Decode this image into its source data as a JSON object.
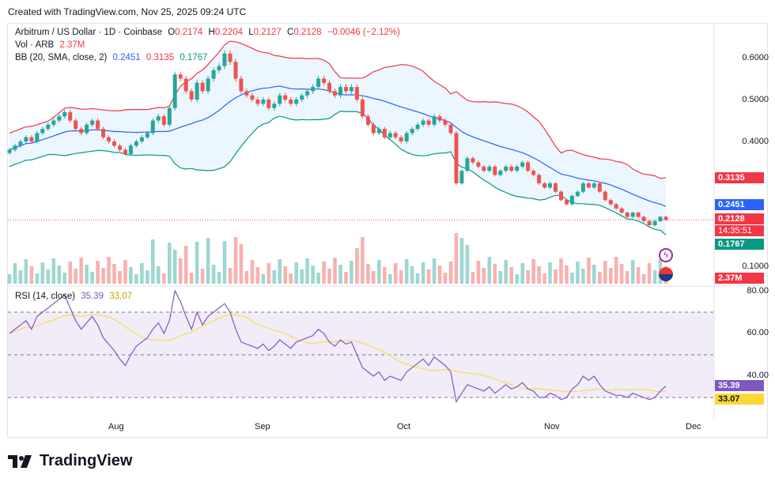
{
  "header": {
    "text": "Created with TradingView.com, Nov 25, 2025 09:24 UTC"
  },
  "legend": {
    "symbol": "Arbitrum / US Dollar · 1D · Coinbase",
    "o_label": "O",
    "o": "0.2174",
    "h_label": "H",
    "h": "0.2204",
    "l_label": "L",
    "l": "0.2127",
    "c_label": "C",
    "c": "0.2128",
    "change": "−0.0046 (−2.12%)",
    "vol_label": "Vol · ARB",
    "vol": "2.37M",
    "bb_label": "BB (20, SMA, close, 2)",
    "bb_mid": "0.2451",
    "bb_upper": "0.3135",
    "bb_lower": "0.1767",
    "rsi_label": "RSI (14, close)",
    "rsi": "35.39",
    "rsi_ma": "33.07"
  },
  "price_axis": [
    "0.6000",
    "0.5000",
    "0.4000",
    "0.1000"
  ],
  "rsi_axis": [
    "80.00",
    "60.00",
    "40.00"
  ],
  "tags": {
    "upper": "0.3135",
    "mid": "0.2451",
    "last": "0.2128",
    "countdown": "14:35:51",
    "lower": "0.1767",
    "volume": "2.37M",
    "rsi": "35.39",
    "rsi_ma": "33.07"
  },
  "x_axis": [
    "Aug",
    "Sep",
    "Oct",
    "Nov",
    "Dec"
  ],
  "logo": {
    "text": "TradingView"
  },
  "colors": {
    "up": "#26a69a",
    "down": "#ef5350",
    "upper_band": "#f23645",
    "mid_band": "#2962ff",
    "lower_band": "#089981",
    "band_fill": "#e3f2fd",
    "rsi_line": "#7e57c2",
    "rsi_ma": "#fdd835"
  },
  "chart_data": {
    "type": "candlestick",
    "title": "Arbitrum / US Dollar · 1D · Coinbase",
    "price_range": [
      0.07,
      0.64
    ],
    "rsi_range": [
      20,
      80
    ],
    "closes": [
      0.38,
      0.39,
      0.4,
      0.41,
      0.4,
      0.42,
      0.43,
      0.44,
      0.45,
      0.46,
      0.47,
      0.45,
      0.43,
      0.42,
      0.44,
      0.45,
      0.43,
      0.41,
      0.4,
      0.39,
      0.38,
      0.37,
      0.39,
      0.4,
      0.41,
      0.42,
      0.45,
      0.46,
      0.44,
      0.48,
      0.56,
      0.55,
      0.52,
      0.5,
      0.54,
      0.52,
      0.55,
      0.57,
      0.58,
      0.61,
      0.59,
      0.55,
      0.52,
      0.51,
      0.5,
      0.49,
      0.5,
      0.48,
      0.49,
      0.51,
      0.5,
      0.49,
      0.5,
      0.51,
      0.52,
      0.53,
      0.55,
      0.54,
      0.52,
      0.51,
      0.53,
      0.52,
      0.53,
      0.5,
      0.46,
      0.44,
      0.42,
      0.43,
      0.41,
      0.42,
      0.41,
      0.4,
      0.42,
      0.43,
      0.44,
      0.45,
      0.44,
      0.46,
      0.45,
      0.44,
      0.42,
      0.3,
      0.33,
      0.36,
      0.35,
      0.34,
      0.33,
      0.34,
      0.32,
      0.33,
      0.34,
      0.33,
      0.34,
      0.35,
      0.33,
      0.32,
      0.3,
      0.29,
      0.3,
      0.28,
      0.26,
      0.25,
      0.27,
      0.28,
      0.3,
      0.29,
      0.3,
      0.28,
      0.26,
      0.25,
      0.24,
      0.23,
      0.22,
      0.23,
      0.22,
      0.21,
      0.2,
      0.21,
      0.22,
      0.2128
    ],
    "volume_last": "2.37M",
    "bb_last": {
      "upper": 0.3135,
      "middle": 0.2451,
      "lower": 0.1767
    },
    "rsi": [
      60,
      62,
      64,
      66,
      62,
      68,
      70,
      72,
      74,
      76,
      78,
      72,
      66,
      62,
      65,
      68,
      64,
      58,
      55,
      52,
      48,
      45,
      50,
      54,
      56,
      58,
      62,
      65,
      60,
      66,
      80,
      75,
      68,
      62,
      70,
      64,
      68,
      70,
      72,
      74,
      70,
      62,
      56,
      55,
      54,
      53,
      55,
      52,
      54,
      57,
      55,
      53,
      56,
      57,
      58,
      59,
      62,
      60,
      56,
      54,
      57,
      55,
      56,
      50,
      44,
      42,
      40,
      42,
      38,
      40,
      39,
      38,
      42,
      44,
      46,
      48,
      45,
      49,
      47,
      45,
      42,
      28,
      32,
      36,
      35,
      34,
      33,
      35,
      32,
      34,
      36,
      34,
      35,
      37,
      34,
      33,
      30,
      30,
      32,
      31,
      29,
      30,
      34,
      36,
      40,
      38,
      40,
      36,
      33,
      32,
      31,
      31,
      30,
      32,
      31,
      30,
      29,
      30,
      33,
      35.39
    ],
    "rsi_ma_last": 33.07,
    "x_labels": [
      "Aug",
      "Sep",
      "Oct",
      "Nov",
      "Dec"
    ]
  }
}
